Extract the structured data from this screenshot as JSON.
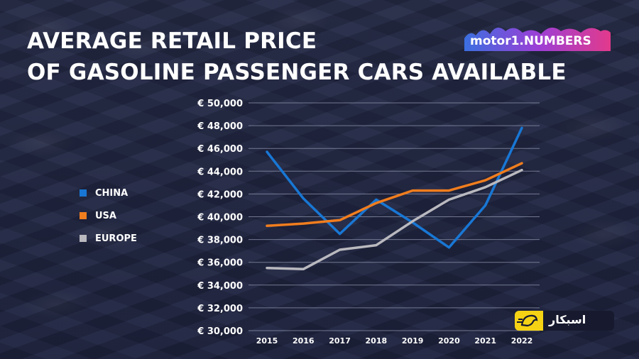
{
  "title_lines": [
    "AVERAGE RETAIL PRICE",
    "OF GASOLINE PASSENGER CARS AVAILABLE"
  ],
  "logo": {
    "text": "motor1.NUMBERS"
  },
  "watermark": {
    "text": "اسبکار"
  },
  "colors": {
    "china": "#1877d4",
    "usa": "#f07d1e",
    "europe": "#b9b9bf",
    "grid": "#8a8fa8",
    "text": "#ffffff"
  },
  "chart_data": {
    "type": "line",
    "title": "AVERAGE RETAIL PRICE OF GASOLINE PASSENGER CARS AVAILABLE",
    "xlabel": "",
    "ylabel": "",
    "categories": [
      "2015",
      "2016",
      "2017",
      "2018",
      "2019",
      "2020",
      "2021",
      "2022"
    ],
    "y_ticks": [
      "€ 30,000",
      "€ 32,000",
      "€ 34,000",
      "€ 36,000",
      "€ 38,000",
      "€ 40,000",
      "€ 42,000",
      "€ 44,000",
      "€ 46,000",
      "€ 48,000",
      "€ 50,000"
    ],
    "ylim": [
      30000,
      50000
    ],
    "grid": "horizontal",
    "legend_position": "left",
    "series": [
      {
        "name": "CHINA",
        "color": "#1877d4",
        "values": [
          45700,
          41600,
          38500,
          41500,
          39500,
          37300,
          41000,
          47800
        ]
      },
      {
        "name": "USA",
        "color": "#f07d1e",
        "values": [
          39200,
          39400,
          39700,
          41200,
          42300,
          42300,
          43200,
          44700
        ]
      },
      {
        "name": "EUROPE",
        "color": "#b9b9bf",
        "values": [
          35500,
          35400,
          37100,
          37500,
          39600,
          41500,
          42600,
          44100
        ]
      }
    ]
  }
}
